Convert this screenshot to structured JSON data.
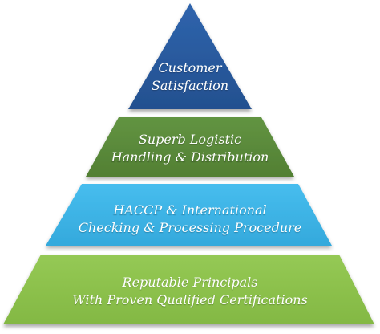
{
  "tiers": [
    {
      "line1": "Customer",
      "line2": "Satisfaction",
      "color": "#2b5a9e"
    },
    {
      "line1": "Superb Logistic",
      "line2": "Handling & Distribution",
      "color": "#5a8a3a"
    },
    {
      "line1": "HACCP & International",
      "line2": "Checking & Processing Procedure",
      "color": "#3db4e6"
    },
    {
      "line1": "Reputable Principals",
      "line2": "With Proven Qualified Certifications",
      "color": "#8cc04a"
    }
  ]
}
